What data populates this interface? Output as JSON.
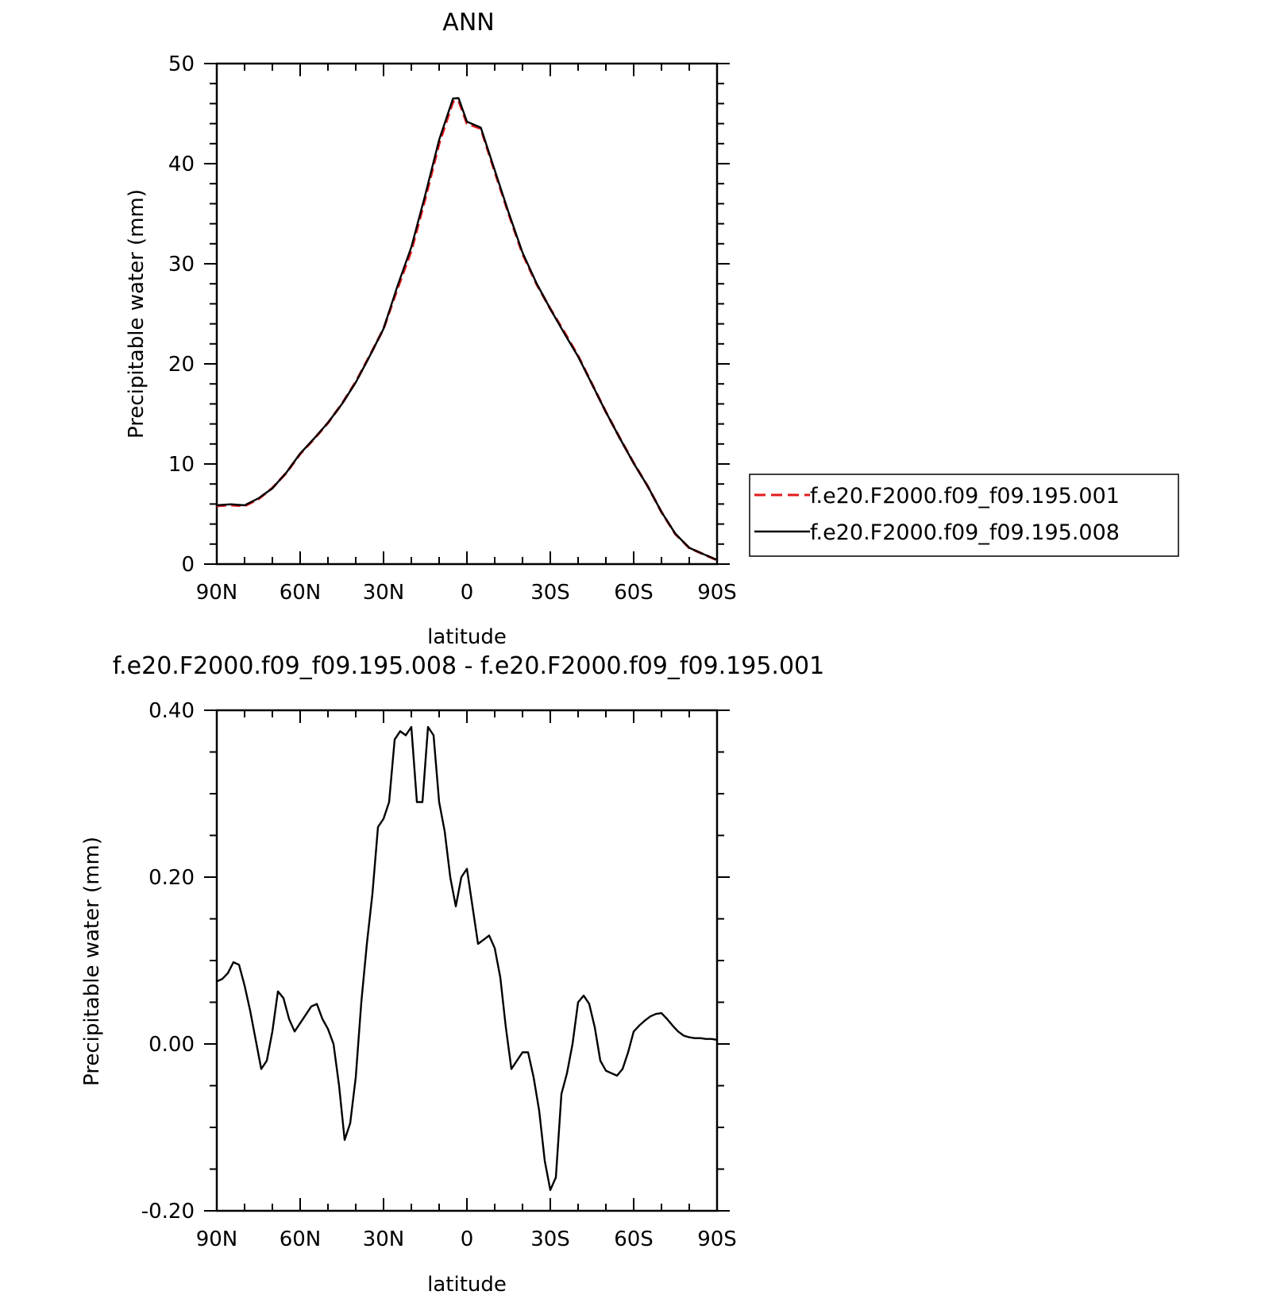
{
  "chart_data": [
    {
      "type": "line",
      "title": "ANN",
      "xlabel": "latitude",
      "ylabel": "Precipitable water (mm)",
      "xlim": [
        90,
        -90
      ],
      "ylim": [
        0,
        50
      ],
      "xticks": [
        90,
        60,
        30,
        0,
        -30,
        -60,
        -90
      ],
      "xtick_labels": [
        "90N",
        "60N",
        "30N",
        "0",
        "30S",
        "60S",
        "90S"
      ],
      "yticks": [
        0,
        10,
        20,
        30,
        40,
        50
      ],
      "ytick_labels": [
        "0",
        "10",
        "20",
        "30",
        "40",
        "50"
      ],
      "grid": false,
      "legend": "right",
      "x": [
        90,
        85,
        80,
        75,
        70,
        65,
        60,
        55,
        50,
        45,
        40,
        35,
        30,
        25,
        20,
        15,
        10,
        5,
        3,
        0,
        -5,
        -10,
        -15,
        -20,
        -25,
        -30,
        -35,
        -40,
        -45,
        -50,
        -55,
        -60,
        -65,
        -70,
        -75,
        -80,
        -85,
        -90
      ],
      "series": [
        {
          "name": "f.e20.F2000.f09_f09.195.001",
          "color": "#e31a1c",
          "dash": "dashed",
          "values": [
            5.8,
            5.9,
            5.8,
            6.5,
            7.6,
            9.1,
            11.0,
            12.5,
            14.1,
            16.0,
            18.2,
            20.8,
            23.5,
            27.5,
            31.3,
            36.5,
            42.0,
            46.2,
            46.3,
            44.0,
            43.5,
            39.2,
            35.0,
            31.0,
            28.0,
            25.5,
            23.2,
            20.8,
            18.0,
            15.2,
            12.6,
            10.1,
            7.8,
            5.2,
            3.0,
            1.6,
            1.0,
            0.4
          ]
        },
        {
          "name": "f.e20.F2000.f09_f09.195.008",
          "color": "#000000",
          "dash": "solid",
          "values": [
            5.88,
            5.98,
            5.87,
            6.57,
            7.57,
            9.13,
            11.05,
            12.54,
            14.13,
            15.98,
            18.15,
            20.77,
            23.51,
            27.77,
            31.67,
            36.87,
            42.38,
            46.51,
            46.55,
            44.2,
            43.6,
            39.36,
            35.12,
            31.12,
            28.07,
            25.49,
            23.06,
            20.74,
            17.98,
            15.19,
            12.58,
            10.07,
            7.8,
            5.21,
            3.03,
            1.63,
            1.01,
            0.41
          ]
        }
      ]
    },
    {
      "type": "line",
      "title": "f.e20.F2000.f09_f09.195.008 - f.e20.F2000.f09_f09.195.001",
      "xlabel": "latitude",
      "ylabel": "Precipitable water (mm)",
      "xlim": [
        90,
        -90
      ],
      "ylim": [
        -0.2,
        0.4
      ],
      "xticks": [
        90,
        60,
        30,
        0,
        -30,
        -60,
        -90
      ],
      "xtick_labels": [
        "90N",
        "60N",
        "30N",
        "0",
        "30S",
        "60S",
        "90S"
      ],
      "yticks": [
        -0.2,
        0.0,
        0.2,
        0.4
      ],
      "ytick_labels": [
        "-0.20",
        "0.00",
        "0.20",
        "0.40"
      ],
      "grid": false,
      "x": [
        90,
        88,
        86,
        84,
        82,
        80,
        78,
        76,
        74,
        72,
        70,
        68,
        66,
        64,
        62,
        60,
        58,
        56,
        54,
        52,
        50,
        48,
        46,
        44,
        42,
        40,
        38,
        36,
        34,
        32,
        30,
        28,
        26,
        24,
        22,
        20,
        18,
        16,
        14,
        12,
        10,
        8,
        6,
        4,
        2,
        0,
        -2,
        -4,
        -6,
        -8,
        -10,
        -12,
        -14,
        -16,
        -18,
        -20,
        -22,
        -24,
        -26,
        -28,
        -30,
        -32,
        -34,
        -36,
        -38,
        -40,
        -42,
        -44,
        -46,
        -48,
        -50,
        -52,
        -54,
        -56,
        -58,
        -60,
        -62,
        -64,
        -66,
        -68,
        -70,
        -72,
        -74,
        -76,
        -78,
        -80,
        -82,
        -84,
        -86,
        -88,
        -90
      ],
      "series": [
        {
          "name": "",
          "color": "#000000",
          "dash": "solid",
          "values": [
            0.075,
            0.078,
            0.085,
            0.098,
            0.095,
            0.07,
            0.04,
            0.005,
            -0.03,
            -0.02,
            0.015,
            0.063,
            0.055,
            0.03,
            0.015,
            0.025,
            0.035,
            0.045,
            0.048,
            0.03,
            0.018,
            0.0,
            -0.05,
            -0.115,
            -0.095,
            -0.04,
            0.05,
            0.12,
            0.18,
            0.26,
            0.27,
            0.29,
            0.365,
            0.375,
            0.37,
            0.38,
            0.29,
            0.29,
            0.38,
            0.37,
            0.29,
            0.255,
            0.2,
            0.165,
            0.2,
            0.21,
            0.165,
            0.12,
            0.125,
            0.13,
            0.115,
            0.08,
            0.02,
            -0.03,
            -0.02,
            -0.01,
            -0.01,
            -0.04,
            -0.08,
            -0.14,
            -0.175,
            -0.16,
            -0.06,
            -0.035,
            0.0,
            0.05,
            0.058,
            0.048,
            0.02,
            -0.02,
            -0.032,
            -0.035,
            -0.038,
            -0.03,
            -0.01,
            0.015,
            0.022,
            0.028,
            0.033,
            0.036,
            0.037,
            0.03,
            0.022,
            0.015,
            0.01,
            0.008,
            0.007,
            0.007,
            0.006,
            0.006,
            0.005
          ]
        }
      ]
    }
  ]
}
